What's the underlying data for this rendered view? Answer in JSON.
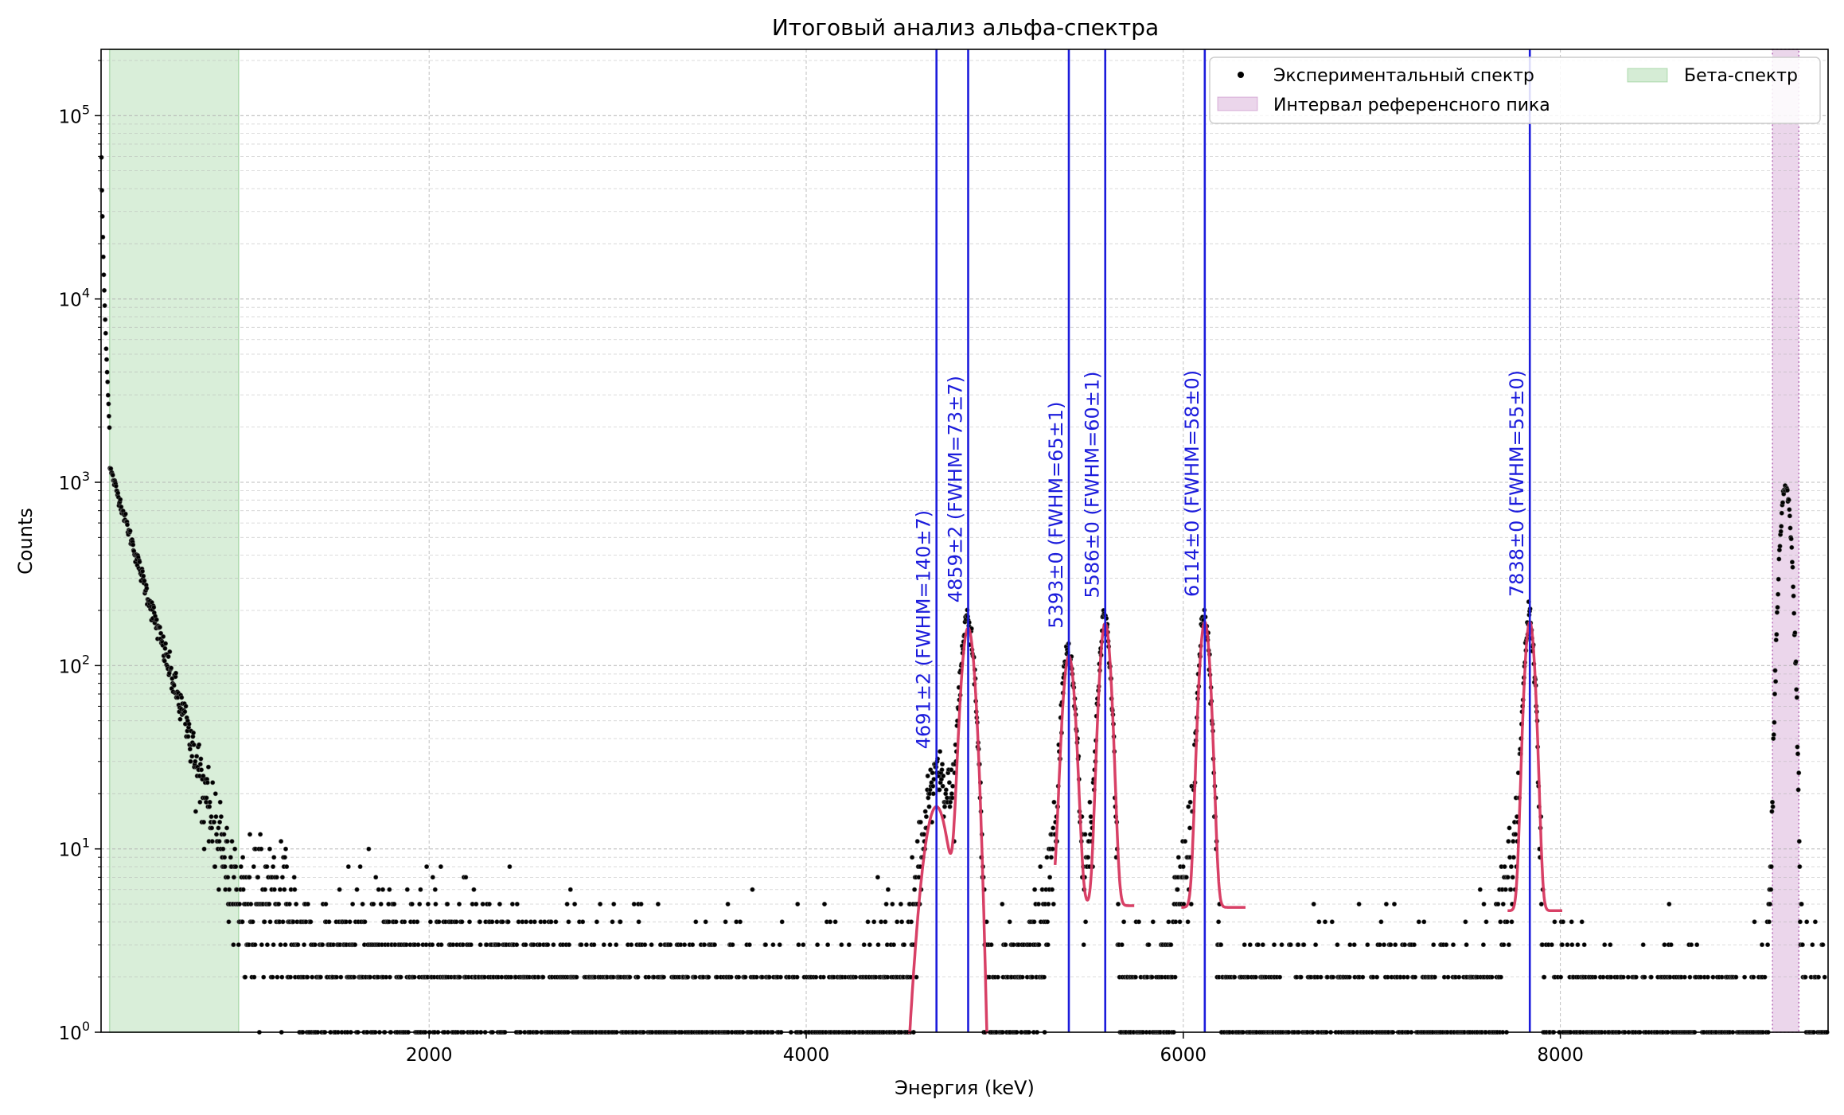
{
  "chart_data": {
    "type": "scatter",
    "title": "Итоговый анализ альфа-спектра",
    "xlabel": "Энергия (keV)",
    "ylabel": "Counts",
    "xlim": [
      260,
      9420
    ],
    "ylim": [
      1,
      230000
    ],
    "yscale": "log",
    "grid": true,
    "legend_position": "top-right",
    "x_ticks": [
      2000,
      4000,
      6000,
      8000
    ],
    "y_ticks": [
      {
        "value": 1,
        "base": "10",
        "exp": "0"
      },
      {
        "value": 10,
        "base": "10",
        "exp": "1"
      },
      {
        "value": 100,
        "base": "10",
        "exp": "2"
      },
      {
        "value": 1000,
        "base": "10",
        "exp": "3"
      },
      {
        "value": 10000,
        "base": "10",
        "exp": "4"
      },
      {
        "value": 100000,
        "base": "10",
        "exp": "5"
      }
    ],
    "legend": [
      {
        "label": "Экспериментальный спектр",
        "kind": "marker",
        "color": "#000000"
      },
      {
        "label": "Бета-спектр",
        "kind": "patch",
        "color": "#2ca02c"
      },
      {
        "label": "Интервал референсного пика",
        "kind": "patch",
        "color": "#b05bb0"
      }
    ],
    "regions": [
      {
        "name": "Бета-спектр",
        "x": [
          305,
          990
        ],
        "color": "#2ca02c"
      },
      {
        "name": "Интервал референсного пика",
        "x": [
          9125,
          9265
        ],
        "color": "#b05bb0"
      }
    ],
    "peaks": [
      {
        "label": "4691±2 (FWHM=140±7)",
        "center": 4691,
        "fwhm": 140,
        "height": 17,
        "baseline": 0
      },
      {
        "label": "4859±2 (FWHM=73±7)",
        "center": 4859,
        "fwhm": 73,
        "height": 160,
        "baseline": 0
      },
      {
        "label": "5393±0 (FWHM=65±1)",
        "center": 5393,
        "fwhm": 65,
        "height": 108,
        "baseline": 4.9
      },
      {
        "label": "5586±0 (FWHM=60±1)",
        "center": 5586,
        "fwhm": 60,
        "height": 165,
        "baseline": 4.9
      },
      {
        "label": "6114±0 (FWHM=58±0)",
        "center": 6114,
        "fwhm": 58,
        "height": 168,
        "baseline": 4.8
      },
      {
        "label": "7838±0 (FWHM=55±0)",
        "center": 7838,
        "fwhm": 55,
        "height": 168,
        "baseline": 4.6
      }
    ],
    "fits": [
      {
        "x_range": [
          4540,
          4960
        ],
        "peaks": [
          0,
          1
        ],
        "color": "#d6365e"
      },
      {
        "x_range": [
          5320,
          5740
        ],
        "peaks": [
          2,
          3
        ],
        "color": "#d6365e"
      },
      {
        "x_range": [
          5990,
          6330
        ],
        "peaks": [
          4
        ],
        "color": "#d6365e"
      },
      {
        "x_range": [
          7720,
          8010
        ],
        "peaks": [
          5
        ],
        "color": "#d6365e"
      }
    ],
    "colors": {
      "data": "#000000",
      "peak_line": "#1c1cdc",
      "fit": "#d6365e",
      "grid": "#b0b0b0"
    }
  }
}
